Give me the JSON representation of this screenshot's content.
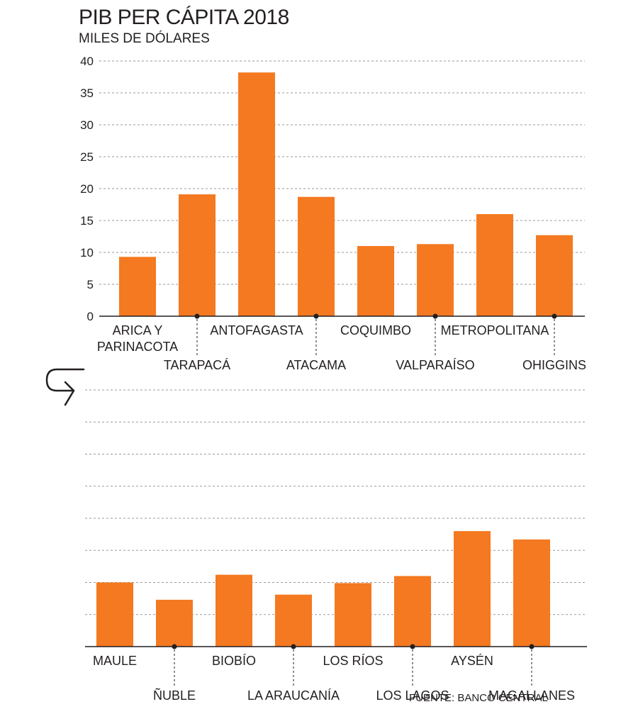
{
  "title": "PIB PER CÁPITA 2018",
  "subtitle": "MILES DE DÓLARES",
  "source": "FUENTE: BANCO CENTRAL",
  "colors": {
    "bar": "#f47920",
    "grid": "#9a9a9a",
    "axis": "#231f20",
    "text": "#231f20"
  },
  "icons": {
    "continuation": "curved-arrow-down-right-icon"
  },
  "chart_data": [
    {
      "type": "bar",
      "title": "PIB PER CÁPITA 2018",
      "ylabel": "MILES DE DÓLARES",
      "ylim": [
        0,
        40
      ],
      "yticks": [
        "0",
        "5",
        "10",
        "15",
        "20",
        "25",
        "30",
        "35",
        "40"
      ],
      "grid": true,
      "categories": [
        [
          "ARICA Y",
          "PARINACOTA"
        ],
        [
          "TARAPACÁ"
        ],
        [
          "ANTOFAGASTA"
        ],
        [
          "ATACAMA"
        ],
        [
          "COQUIMBO"
        ],
        [
          "VALPARAÍSO"
        ],
        [
          "METROPOLITANA"
        ],
        [
          "OHIGGINS"
        ]
      ],
      "values": [
        9.3,
        19.1,
        38.2,
        18.7,
        11.0,
        11.3,
        16.0,
        12.7
      ]
    },
    {
      "type": "bar",
      "ylim": [
        0,
        40
      ],
      "grid": true,
      "categories": [
        [
          "MAULE"
        ],
        [
          "ÑUBLE"
        ],
        [
          "BIOBÍO"
        ],
        [
          "LA ARAUCANÍA"
        ],
        [
          "LOS RÍOS"
        ],
        [
          "LOS LAGOS"
        ],
        [
          "AYSÉN"
        ],
        [
          "MAGALLANES"
        ]
      ],
      "values": [
        10.0,
        7.3,
        11.2,
        8.1,
        9.9,
        11.0,
        18.0,
        16.7
      ]
    }
  ]
}
